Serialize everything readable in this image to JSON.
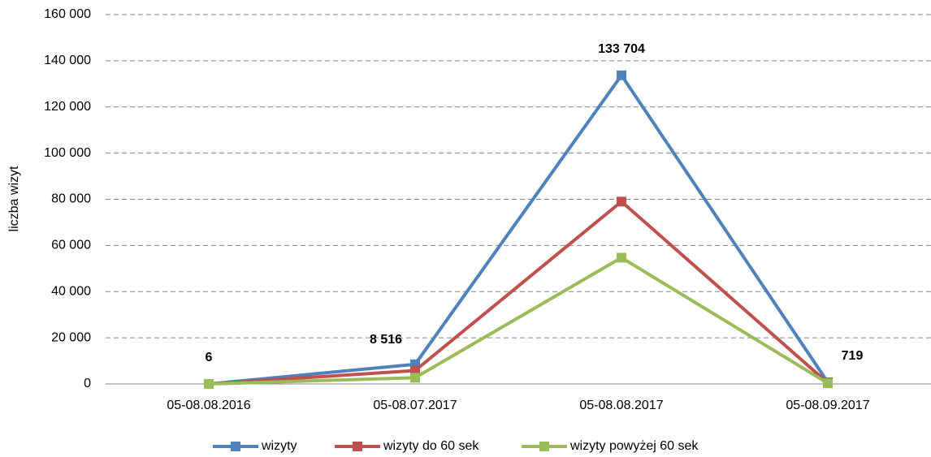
{
  "chart_data": {
    "type": "line",
    "y_label": "liczba wizyt",
    "categories": [
      "05-08.08.2016",
      "05-08.07.2017",
      "05-08.08.2017",
      "05-08.09.2017"
    ],
    "series": [
      {
        "name": "wizyty",
        "color": "#4f81bd",
        "values": [
          6,
          8516,
          133704,
          719
        ],
        "value_labels": [
          "6",
          "8 516",
          "133 704",
          "719"
        ]
      },
      {
        "name": "wizyty do 60 sek",
        "color": "#c0504d",
        "values": [
          3,
          5800,
          79000,
          420
        ]
      },
      {
        "name": "wizyty powyżej 60 sek",
        "color": "#9bbb59",
        "values": [
          3,
          2700,
          54700,
          300
        ]
      }
    ],
    "ylim": [
      0,
      160000
    ],
    "yticks": [
      0,
      {
        "value": 20000,
        "label": "20 000"
      },
      {
        "value": 40000,
        "label": "40 000"
      },
      {
        "value": 60000,
        "label": "60 000"
      },
      {
        "value": 80000,
        "label": "80 000"
      },
      {
        "value": 100000,
        "label": "100 000"
      },
      {
        "value": 120000,
        "label": "120 000"
      },
      {
        "value": 140000,
        "label": "140 000"
      },
      {
        "value": 160000,
        "label": "160 000"
      }
    ],
    "grid": true,
    "legend": "bottom"
  }
}
